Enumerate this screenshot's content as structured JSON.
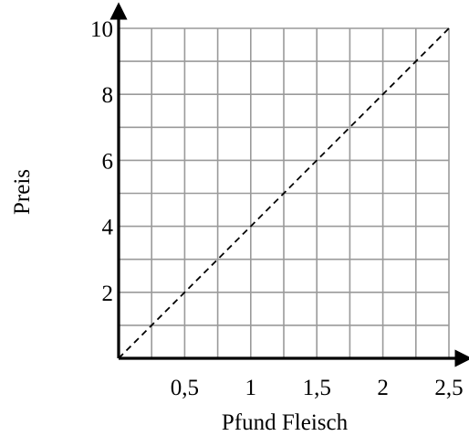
{
  "chart_data": {
    "type": "line",
    "title": "",
    "xlabel": "Pfund Fleisch",
    "ylabel": "Preis",
    "xlim": [
      0,
      2.5
    ],
    "ylim": [
      0,
      10
    ],
    "grid": true,
    "x_grid_step": 0.25,
    "y_grid_step": 1,
    "x_ticks": [
      {
        "value": 0.5,
        "label": "0,5"
      },
      {
        "value": 1,
        "label": "1"
      },
      {
        "value": 1.5,
        "label": "1,5"
      },
      {
        "value": 2,
        "label": "2"
      },
      {
        "value": 2.5,
        "label": "2,5"
      }
    ],
    "y_ticks": [
      {
        "value": 2,
        "label": "2"
      },
      {
        "value": 4,
        "label": "4"
      },
      {
        "value": 6,
        "label": "6"
      },
      {
        "value": 8,
        "label": "8"
      },
      {
        "value": 10,
        "label": "10"
      }
    ],
    "series": [
      {
        "style": "dashed",
        "color": "#000000",
        "x": [
          0,
          2.5
        ],
        "values": [
          0,
          10
        ]
      }
    ]
  }
}
